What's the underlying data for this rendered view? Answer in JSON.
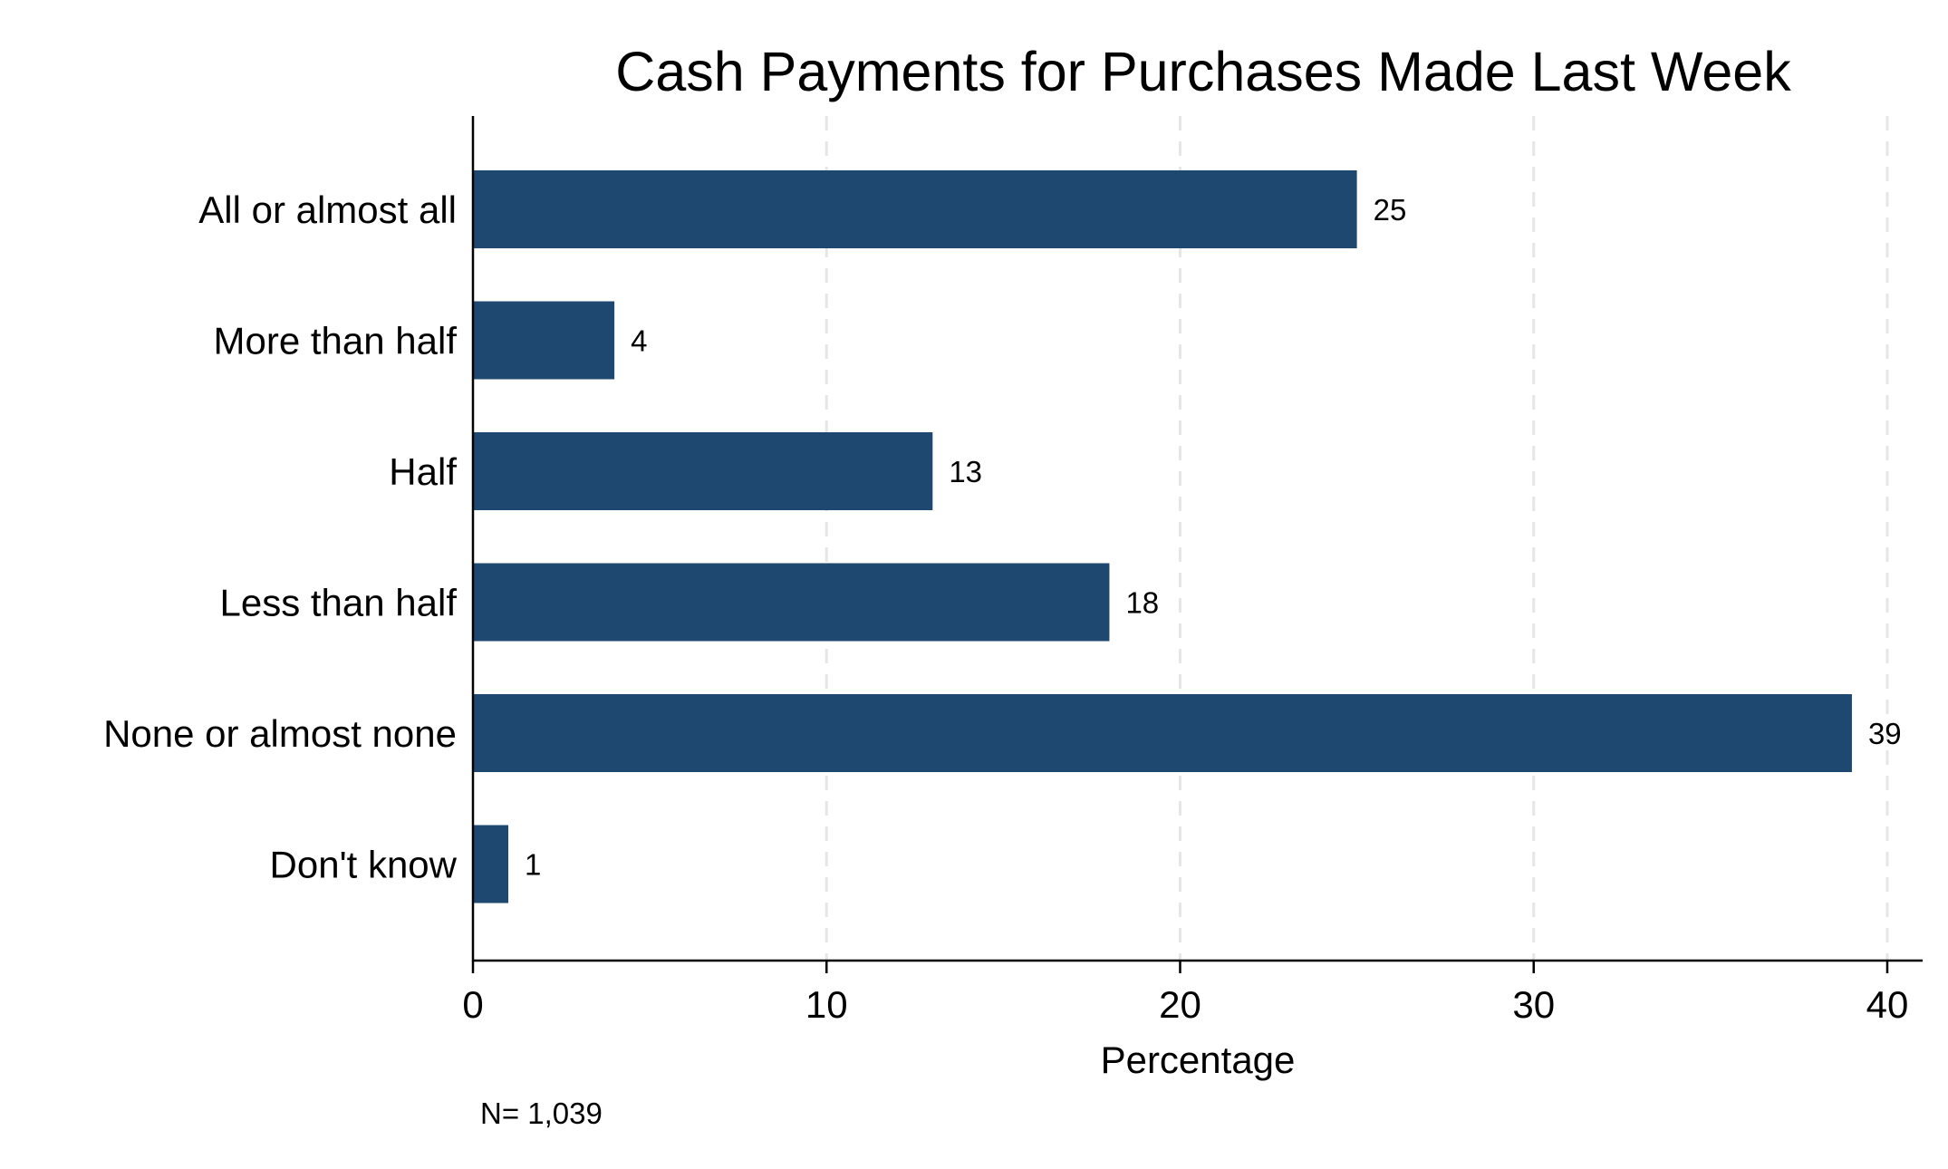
{
  "chart_data": {
    "type": "bar",
    "orientation": "horizontal",
    "title": "Cash Payments for Purchases Made Last Week",
    "xlabel": "Percentage",
    "ylabel": "",
    "categories": [
      "All or almost all",
      "More than half",
      "Half",
      "Less than half",
      "None or almost none",
      "Don't know"
    ],
    "values": [
      25,
      4,
      13,
      18,
      39,
      1
    ],
    "data_labels": [
      "25",
      "4",
      "13",
      "18",
      "39",
      "1"
    ],
    "xlim": [
      0,
      41
    ],
    "xticks": [
      0,
      10,
      20,
      30,
      40
    ],
    "xtick_labels": [
      "0",
      "10",
      "20",
      "30",
      "40"
    ],
    "grid": "vertical dashed",
    "legend": "none",
    "bar_color": "#1f4870",
    "grid_color": "#e6e6e6",
    "note": "N= 1,039"
  }
}
